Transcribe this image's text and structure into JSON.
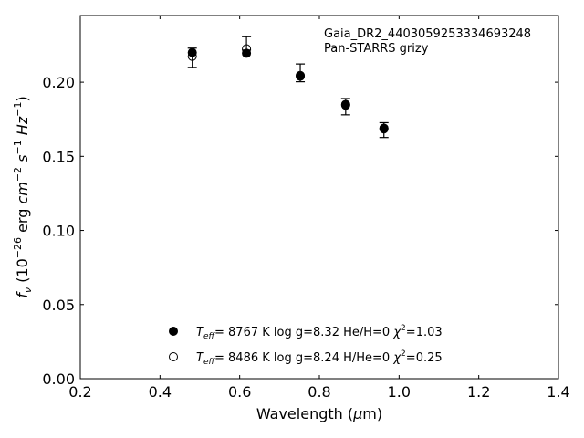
{
  "chart_data": {
    "type": "scatter",
    "title_lines": [
      "Gaia_DR2_4403059253334693248",
      "Pan-STARRS grizy"
    ],
    "xlabel": "Wavelength (μm)",
    "ylabel": "f_ν (10^-26 erg cm^-2 s^-1 Hz^-1)",
    "xlim": [
      0.2,
      1.4
    ],
    "ylim": [
      0.0,
      0.245
    ],
    "xticks": [
      0.2,
      0.4,
      0.6,
      0.8,
      1.0,
      1.2,
      1.4
    ],
    "xtick_labels": [
      "0.2",
      "0.4",
      "0.6",
      "0.8",
      "1.0",
      "1.2",
      "1.4"
    ],
    "yticks": [
      0.0,
      0.05,
      0.1,
      0.15,
      0.2
    ],
    "ytick_labels": [
      "0.00",
      "0.05",
      "0.10",
      "0.15",
      "0.20"
    ],
    "observed": {
      "x": [
        0.481,
        0.617,
        0.752,
        0.866,
        0.962
      ],
      "y": [
        0.2165,
        0.2262,
        0.2063,
        0.1835,
        0.1677
      ],
      "err": [
        0.0065,
        0.0045,
        0.006,
        0.0055,
        0.005
      ]
    },
    "series": [
      {
        "name": "Teff= 8767 K log g=8.32 He/H=0 χ2=1.03",
        "marker": "filled",
        "x": [
          0.481,
          0.617,
          0.752,
          0.866,
          0.962
        ],
        "y": [
          0.22,
          0.2195,
          0.204,
          0.1845,
          0.169
        ]
      },
      {
        "name": "Teff= 8486 K log g=8.24 H/He=0 χ2=0.25",
        "marker": "open",
        "x": [
          0.481,
          0.617,
          0.752,
          0.866,
          0.962
        ],
        "y": [
          0.2175,
          0.2225,
          0.2045,
          0.185,
          0.1685
        ]
      }
    ],
    "legend": [
      {
        "teff": "8767",
        "logg": "8.32",
        "comp": "He/H=0",
        "chi2": "1.03"
      },
      {
        "teff": "8486",
        "logg": "8.24",
        "comp": "H/He=0",
        "chi2": "0.25"
      }
    ],
    "legend_position": "bottom-center",
    "grid": false
  }
}
